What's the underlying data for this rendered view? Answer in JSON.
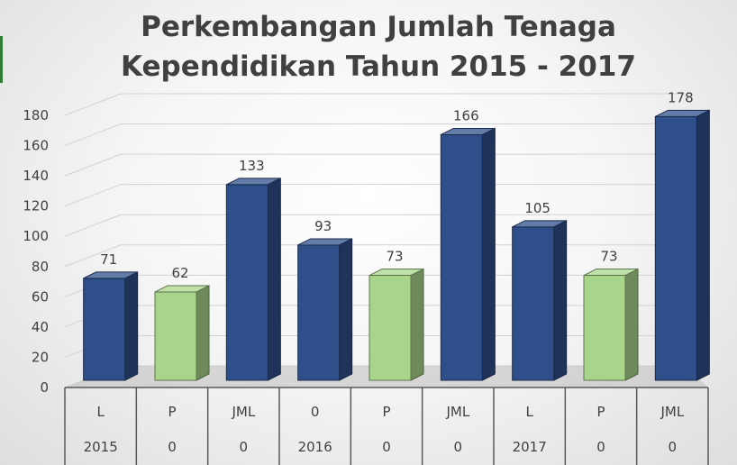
{
  "title_line1": "Perkembangan Jumlah Tenaga",
  "title_line2": "Kependidikan Tahun 2015 - 2017",
  "chart_data": {
    "type": "bar",
    "title": "Perkembangan Jumlah Tenaga Kependidikan Tahun 2015 - 2017",
    "categories": [
      [
        "L",
        "2015"
      ],
      [
        "P",
        "0"
      ],
      [
        "JML",
        "0"
      ],
      [
        "0",
        "2016"
      ],
      [
        "P",
        "0"
      ],
      [
        "JML",
        "0"
      ],
      [
        "L",
        "2017"
      ],
      [
        "P",
        "0"
      ],
      [
        "JML",
        "0"
      ]
    ],
    "values": [
      71,
      62,
      133,
      93,
      73,
      166,
      105,
      73,
      178
    ],
    "bar_colors": [
      "#2f4f8a",
      "#a9d58b",
      "#2f4f8a",
      "#2f4f8a",
      "#a9d58b",
      "#2f4f8a",
      "#2f4f8a",
      "#a9d58b",
      "#2f4f8a"
    ],
    "yticks": [
      0,
      20,
      40,
      60,
      80,
      100,
      120,
      140,
      160,
      180
    ],
    "ylim": [
      0,
      180
    ],
    "grid": true,
    "style": "3d-bar"
  }
}
